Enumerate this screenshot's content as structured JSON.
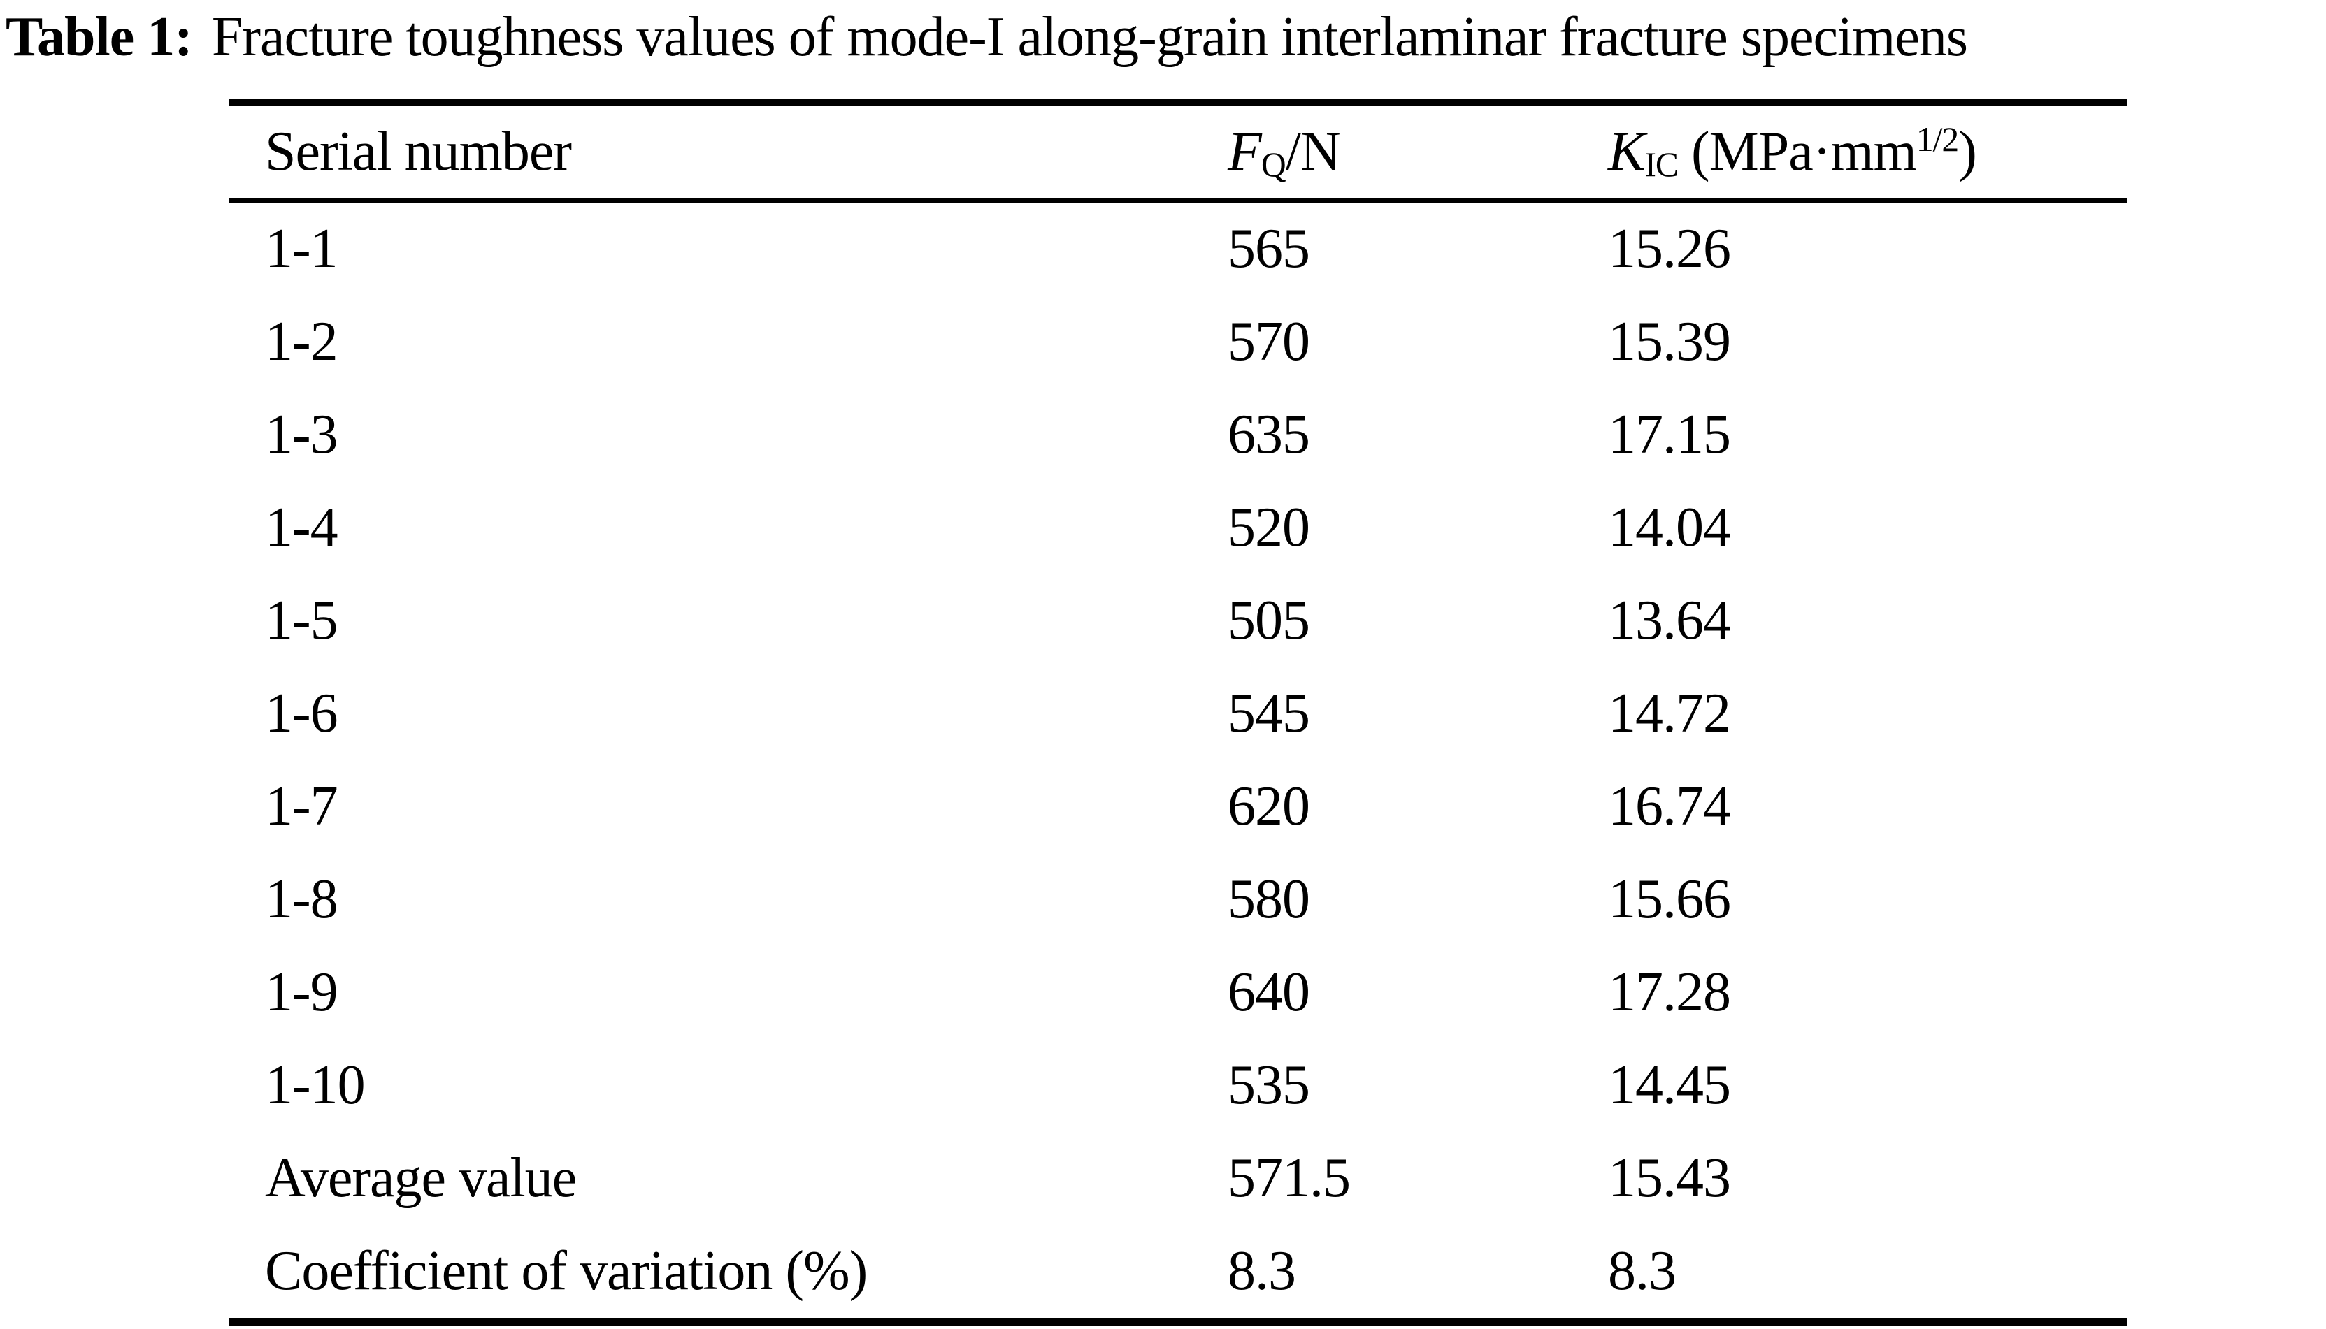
{
  "caption": {
    "label": "Table 1:",
    "text": "Fracture toughness values of mode-I along-grain interlaminar fracture specimens"
  },
  "table": {
    "headers": {
      "serial": "Serial number",
      "fq": {
        "symbol": "F",
        "sub": "Q",
        "rest": "/N"
      },
      "kic": {
        "symbol": "K",
        "sub": "IC",
        "pre": " (MPa·mm",
        "sup": "1/2",
        "post": ")"
      }
    },
    "rows": [
      {
        "serial": "1-1",
        "fq": "565",
        "kic": "15.26"
      },
      {
        "serial": "1-2",
        "fq": "570",
        "kic": "15.39"
      },
      {
        "serial": "1-3",
        "fq": "635",
        "kic": "17.15"
      },
      {
        "serial": "1-4",
        "fq": "520",
        "kic": "14.04"
      },
      {
        "serial": "1-5",
        "fq": "505",
        "kic": "13.64"
      },
      {
        "serial": "1-6",
        "fq": "545",
        "kic": "14.72"
      },
      {
        "serial": "1-7",
        "fq": "620",
        "kic": "16.74"
      },
      {
        "serial": "1-8",
        "fq": "580",
        "kic": "15.66"
      },
      {
        "serial": "1-9",
        "fq": "640",
        "kic": "17.28"
      },
      {
        "serial": "1-10",
        "fq": "535",
        "kic": "14.45"
      },
      {
        "serial": "Average value",
        "fq": "571.5",
        "kic": "15.43"
      },
      {
        "serial": "Coefficient of variation (%)",
        "fq": "8.3",
        "kic": "8.3"
      }
    ]
  }
}
